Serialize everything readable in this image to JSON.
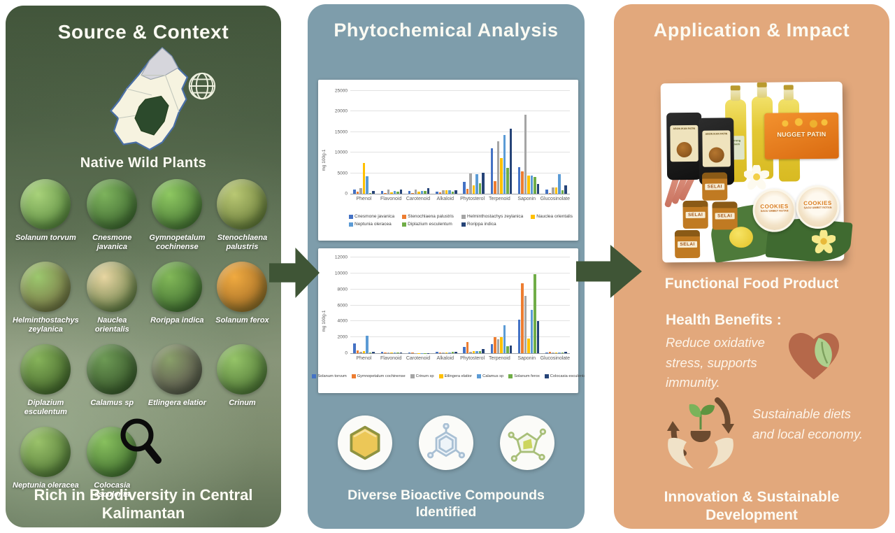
{
  "left_panel": {
    "title": "Source & Context",
    "subtitle": "Native Wild Plants",
    "footer": "Rich in Biodiversity in Central Kalimantan",
    "plants": [
      {
        "name": "Solanum torvum",
        "colors": [
          "#a8d27a",
          "#4a7a33"
        ]
      },
      {
        "name": "Cnesmone javanica",
        "colors": [
          "#7db35c",
          "#2f5526"
        ]
      },
      {
        "name": "Gymnopetalum cochinense",
        "colors": [
          "#8ec861",
          "#356029"
        ]
      },
      {
        "name": "Stenochlaena palustris",
        "colors": [
          "#b9c873",
          "#56682c"
        ]
      },
      {
        "name": "Helminthostachys zeylanica",
        "colors": [
          "#9cc86e",
          "#6e5b3a"
        ]
      },
      {
        "name": "Nauclea orientalis",
        "colors": [
          "#e8d6a2",
          "#46652f"
        ]
      },
      {
        "name": "Rorippa indica",
        "colors": [
          "#82b858",
          "#2f5a26"
        ]
      },
      {
        "name": "Solanum ferox",
        "colors": [
          "#f0aa40",
          "#8a5a1e"
        ]
      },
      {
        "name": "Diplazium esculentum",
        "colors": [
          "#86b35a",
          "#33511f"
        ]
      },
      {
        "name": "Calamus sp",
        "colors": [
          "#6d9a55",
          "#28421e"
        ]
      },
      {
        "name": "Etlingera elatior",
        "colors": [
          "#8aa06a",
          "#4a3b44"
        ]
      },
      {
        "name": "Crinum",
        "colors": [
          "#95c468",
          "#3d6129"
        ]
      },
      {
        "name": "Neptunia oleracea",
        "colors": [
          "#9ac26a",
          "#41662a"
        ]
      },
      {
        "name": "Colocasia esculenta",
        "colors": [
          "#88c05e",
          "#315c24"
        ]
      }
    ]
  },
  "middle_panel": {
    "title": "Phytochemical Analysis",
    "caption": "Diverse Bioactive Compounds Identified"
  },
  "right_panel": {
    "title": "Application & Impact",
    "product_heading": "Functional Food Product",
    "benefits_heading": "Health Benefits :",
    "benefits_text": "Reduce oxidative stress, supports immunity.",
    "sustainability_text": "Sustainable diets and local economy.",
    "footer": "Innovation & Sustainable Development",
    "products": {
      "pouch_label": "ABON IKAN PATIN",
      "bottle_label": "Terong Asam",
      "box_label": "NUGGET PATIN",
      "jar_label": "SELAI",
      "tub_label": "COOKIES",
      "tub_sublabel": "SAGU UMBET ROTAN"
    }
  },
  "colors": {
    "left_bg": "#55684b",
    "middle_bg": "#7e9dab",
    "right_bg": "#e2a87c",
    "arrow": "#3f5536",
    "map_highlight": "#2c4a2c"
  },
  "chart_data": [
    {
      "type": "bar",
      "title": "",
      "xlabel": "",
      "ylabel": "mg 100g-1",
      "ylim": [
        0,
        25000
      ],
      "ytick_step": 5000,
      "grid": true,
      "legend_position": "bottom",
      "categories": [
        "Phenol",
        "Flavonoid",
        "Carotenoid",
        "Alkaloid",
        "Phytosterol",
        "Terpenoid",
        "Saponin",
        "Glucosinolate"
      ],
      "series": [
        {
          "name": "Cnesmone javanica",
          "color": "#4472C4",
          "values": [
            1000,
            700,
            700,
            500,
            2900,
            11000,
            6400,
            1000
          ]
        },
        {
          "name": "Stenochlaena palustris",
          "color": "#ED7D31",
          "values": [
            500,
            250,
            200,
            350,
            1200,
            3000,
            5400,
            250
          ]
        },
        {
          "name": "Helminthostachys zeylanica",
          "color": "#A5A5A5",
          "values": [
            1300,
            1000,
            1100,
            800,
            4900,
            12800,
            19300,
            1600
          ]
        },
        {
          "name": "Nauclea orientalis",
          "color": "#FFC000",
          "values": [
            7500,
            400,
            550,
            850,
            2100,
            8700,
            4400,
            1500
          ]
        },
        {
          "name": "Neptunia oleracea",
          "color": "#5B9BD5",
          "values": [
            4300,
            700,
            700,
            800,
            4700,
            14300,
            4500,
            4800
          ]
        },
        {
          "name": "Diplazium esculentum",
          "color": "#70AD47",
          "values": [
            150,
            500,
            600,
            500,
            2500,
            6300,
            4000,
            800
          ]
        },
        {
          "name": "Rorippa indica",
          "color": "#264478",
          "values": [
            600,
            1100,
            1400,
            800,
            5100,
            15800,
            2400,
            2100
          ]
        }
      ]
    },
    {
      "type": "bar",
      "title": "",
      "xlabel": "",
      "ylabel": "mg 100g-1",
      "ylim": [
        0,
        12000
      ],
      "ytick_step": 2000,
      "grid": true,
      "legend_position": "bottom",
      "categories": [
        "Phenol",
        "Flavonoid",
        "Carotenoid",
        "Alkaloid",
        "Phytosterol",
        "Terpenoid",
        "Saponin",
        "Glucosinolate"
      ],
      "series": [
        {
          "name": "Solanum torvum",
          "color": "#4472C4",
          "values": [
            1200,
            150,
            60,
            200,
            800,
            1100,
            4200,
            120
          ]
        },
        {
          "name": "Gymnopetalum cochinense",
          "color": "#ED7D31",
          "values": [
            350,
            100,
            80,
            130,
            1400,
            2050,
            8800,
            200
          ]
        },
        {
          "name": "Crinum sp",
          "color": "#A5A5A5",
          "values": [
            150,
            60,
            40,
            100,
            200,
            1750,
            7200,
            100
          ]
        },
        {
          "name": "Etlingera elatior",
          "color": "#FFC000",
          "values": [
            250,
            70,
            40,
            120,
            300,
            2050,
            1800,
            120
          ]
        },
        {
          "name": "Calamus sp",
          "color": "#5B9BD5",
          "values": [
            2200,
            70,
            40,
            100,
            250,
            3500,
            5400,
            120
          ]
        },
        {
          "name": "Solanum ferox",
          "color": "#70AD47",
          "values": [
            80,
            60,
            40,
            150,
            300,
            900,
            9900,
            120
          ]
        },
        {
          "name": "Colocasia esculenta",
          "color": "#264478",
          "values": [
            150,
            70,
            40,
            200,
            550,
            1000,
            4000,
            150
          ]
        }
      ]
    }
  ]
}
